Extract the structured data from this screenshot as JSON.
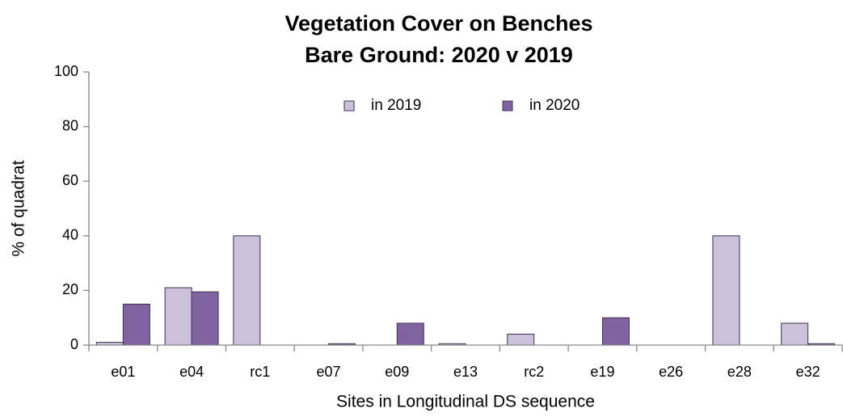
{
  "chart_data": {
    "type": "bar",
    "title": [
      "Vegetation Cover on Benches",
      "Bare Ground: 2020 v 2019"
    ],
    "xlabel": "Sites  in Longitudinal DS sequence",
    "ylabel": "% of quadrat",
    "categories": [
      "e01",
      "e04",
      "rc1",
      "e07",
      "e09",
      "e13",
      "rc2",
      "e19",
      "e26",
      "e28",
      "e32"
    ],
    "series": [
      {
        "name": "in 2019",
        "color": "#ccc1da",
        "values": [
          1,
          21,
          40,
          0,
          0,
          0.5,
          4,
          0,
          0,
          40,
          8
        ]
      },
      {
        "name": "in 2020",
        "color": "#8064a2",
        "values": [
          15,
          19.5,
          0,
          0.5,
          8,
          0,
          0,
          10,
          0,
          0,
          0.5
        ]
      }
    ],
    "ylim": [
      0,
      100
    ],
    "yticks": [
      0,
      20,
      40,
      60,
      80,
      100
    ],
    "grid": false,
    "legend": "top"
  }
}
